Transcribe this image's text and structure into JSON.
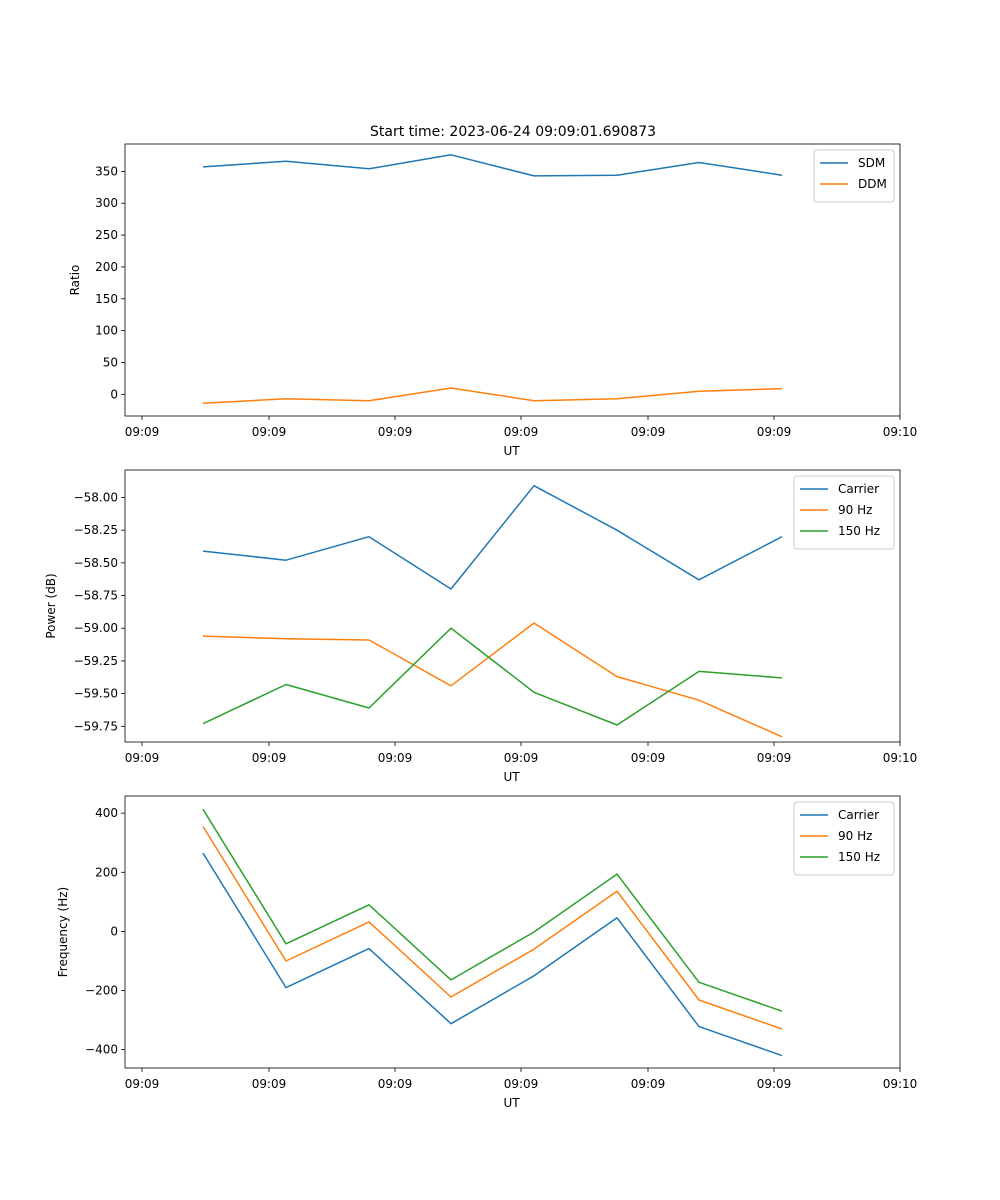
{
  "figure_title": "Start time: 2023-06-24 09:09:01.690873",
  "chart_data": [
    {
      "type": "line",
      "title": "Start time: 2023-06-24 09:09:01.690873",
      "xlabel": "UT",
      "ylabel": "Ratio",
      "x_tick_labels": [
        "09:09",
        "09:09",
        "09:09",
        "09:09",
        "09:09",
        "09:09",
        "09:10"
      ],
      "y_ticks": [
        0,
        50,
        100,
        150,
        200,
        250,
        300,
        350
      ],
      "y_tick_labels": [
        "0",
        "50",
        "100",
        "150",
        "200",
        "250",
        "300",
        "350"
      ],
      "ylim": [
        -34,
        393
      ],
      "grid": false,
      "legend": "top-right",
      "series": [
        {
          "name": "SDM",
          "color": "#1f77b4",
          "values": [
            357,
            366,
            354,
            376,
            343,
            344,
            364,
            344
          ]
        },
        {
          "name": "DDM",
          "color": "#ff7f0e",
          "values": [
            -14,
            -7,
            -10,
            10,
            -10,
            -7,
            5,
            9
          ]
        }
      ]
    },
    {
      "type": "line",
      "xlabel": "UT",
      "ylabel": "Power (dB)",
      "x_tick_labels": [
        "09:09",
        "09:09",
        "09:09",
        "09:09",
        "09:09",
        "09:09",
        "09:10"
      ],
      "y_ticks": [
        -59.75,
        -59.5,
        -59.25,
        -59.0,
        -58.75,
        -58.5,
        -58.25,
        -58.0
      ],
      "y_tick_labels": [
        "−59.75",
        "−59.50",
        "−59.25",
        "−59.00",
        "−58.75",
        "−58.50",
        "−58.25",
        "−58.00"
      ],
      "ylim": [
        -59.87,
        -57.79
      ],
      "grid": false,
      "legend": "top-right",
      "series": [
        {
          "name": "Carrier",
          "color": "#1f77b4",
          "values": [
            -58.41,
            -58.48,
            -58.3,
            -58.7,
            -57.91,
            -58.25,
            -58.63,
            -58.3
          ]
        },
        {
          "name": "90 Hz",
          "color": "#ff7f0e",
          "values": [
            -59.06,
            -59.08,
            -59.09,
            -59.44,
            -58.96,
            -59.37,
            -59.55,
            -59.83
          ]
        },
        {
          "name": "150 Hz",
          "color": "#2ca02c",
          "values": [
            -59.73,
            -59.43,
            -59.61,
            -59.0,
            -59.49,
            -59.74,
            -59.33,
            -59.38
          ]
        }
      ]
    },
    {
      "type": "line",
      "xlabel": "UT",
      "ylabel": "Frequency (Hz)",
      "x_tick_labels": [
        "09:09",
        "09:09",
        "09:09",
        "09:09",
        "09:09",
        "09:09",
        "09:10"
      ],
      "y_ticks": [
        -400,
        -200,
        0,
        200,
        400
      ],
      "y_tick_labels": [
        "−400",
        "−200",
        "0",
        "200",
        "400"
      ],
      "ylim": [
        -462,
        458
      ],
      "grid": false,
      "legend": "top-right",
      "series": [
        {
          "name": "Carrier",
          "color": "#1f77b4",
          "values": [
            265,
            -190,
            -58,
            -312,
            -150,
            46,
            -322,
            -420
          ]
        },
        {
          "name": "90 Hz",
          "color": "#ff7f0e",
          "values": [
            355,
            -100,
            32,
            -222,
            -60,
            136,
            -232,
            -330
          ]
        },
        {
          "name": "150 Hz",
          "color": "#2ca02c",
          "values": [
            413,
            -42,
            90,
            -164,
            -2,
            194,
            -172,
            -270
          ]
        }
      ]
    }
  ]
}
